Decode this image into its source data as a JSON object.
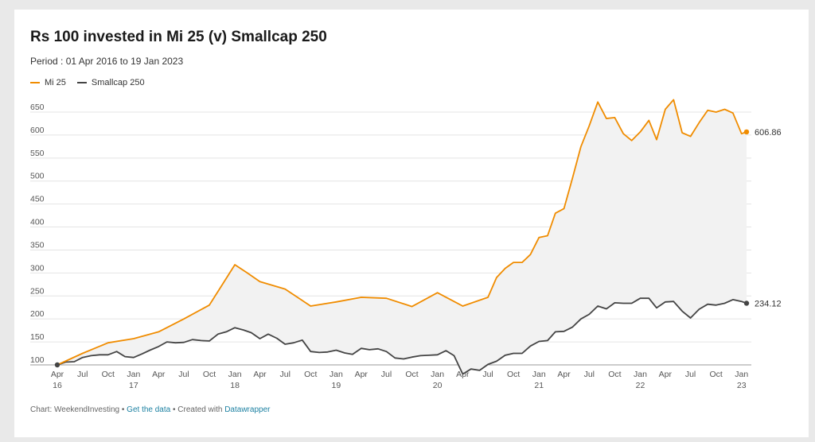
{
  "colors": {
    "mi25": "#f08c00",
    "smallcap": "#444444",
    "fill": "#f2f2f2",
    "grid": "#e4e4e4",
    "link": "#1d81a2"
  },
  "footer": {
    "prefix": "Chart: WeekendInvesting • ",
    "get_data": "Get the data",
    "middle": " • Created with ",
    "tool": "Datawrapper"
  },
  "chart_data": {
    "type": "line",
    "title": "Rs 100 invested in Mi 25 (v) Smallcap 250",
    "subtitle": "Period : 01 Apr 2016 to 19 Jan 2023",
    "xlabel": "",
    "ylabel": "",
    "ylim": [
      100,
      650
    ],
    "xlim": [
      "2016-04-01",
      "2023-01-19"
    ],
    "y_ticks": [
      100,
      150,
      200,
      250,
      300,
      350,
      400,
      450,
      500,
      550,
      600,
      650
    ],
    "x_ticks": [
      {
        "date": "2016-04-01",
        "label": "Apr",
        "year": "16"
      },
      {
        "date": "2016-07-01",
        "label": "Jul",
        "year": ""
      },
      {
        "date": "2016-10-01",
        "label": "Oct",
        "year": ""
      },
      {
        "date": "2017-01-01",
        "label": "Jan",
        "year": "17"
      },
      {
        "date": "2017-04-01",
        "label": "Apr",
        "year": ""
      },
      {
        "date": "2017-07-01",
        "label": "Jul",
        "year": ""
      },
      {
        "date": "2017-10-01",
        "label": "Oct",
        "year": ""
      },
      {
        "date": "2018-01-01",
        "label": "Jan",
        "year": "18"
      },
      {
        "date": "2018-04-01",
        "label": "Apr",
        "year": ""
      },
      {
        "date": "2018-07-01",
        "label": "Jul",
        "year": ""
      },
      {
        "date": "2018-10-01",
        "label": "Oct",
        "year": ""
      },
      {
        "date": "2019-01-01",
        "label": "Jan",
        "year": "19"
      },
      {
        "date": "2019-04-01",
        "label": "Apr",
        "year": ""
      },
      {
        "date": "2019-07-01",
        "label": "Jul",
        "year": ""
      },
      {
        "date": "2019-10-01",
        "label": "Oct",
        "year": ""
      },
      {
        "date": "2020-01-01",
        "label": "Jan",
        "year": "20"
      },
      {
        "date": "2020-04-01",
        "label": "Apr",
        "year": ""
      },
      {
        "date": "2020-07-01",
        "label": "Jul",
        "year": ""
      },
      {
        "date": "2020-10-01",
        "label": "Oct",
        "year": ""
      },
      {
        "date": "2021-01-01",
        "label": "Jan",
        "year": "21"
      },
      {
        "date": "2021-04-01",
        "label": "Apr",
        "year": ""
      },
      {
        "date": "2021-07-01",
        "label": "Jul",
        "year": ""
      },
      {
        "date": "2021-10-01",
        "label": "Oct",
        "year": ""
      },
      {
        "date": "2022-01-01",
        "label": "Jan",
        "year": "22"
      },
      {
        "date": "2022-04-01",
        "label": "Apr",
        "year": ""
      },
      {
        "date": "2022-07-01",
        "label": "Jul",
        "year": ""
      },
      {
        "date": "2022-10-01",
        "label": "Oct",
        "year": ""
      },
      {
        "date": "2023-01-01",
        "label": "Jan",
        "year": "23"
      }
    ],
    "grid": "horizontal",
    "legend": "top-left",
    "area_between_series": true,
    "series": [
      {
        "name": "Mi 25",
        "color": "#f08c00",
        "end_label": "606.86",
        "points": [
          [
            "2016-04-01",
            100
          ],
          [
            "2016-07-01",
            125
          ],
          [
            "2016-10-01",
            148
          ],
          [
            "2017-01-01",
            157
          ],
          [
            "2017-04-01",
            172
          ],
          [
            "2017-07-01",
            200
          ],
          [
            "2017-10-01",
            230
          ],
          [
            "2017-11-15",
            273
          ],
          [
            "2018-01-01",
            318
          ],
          [
            "2018-02-15",
            300
          ],
          [
            "2018-04-01",
            281
          ],
          [
            "2018-07-01",
            265
          ],
          [
            "2018-10-01",
            228
          ],
          [
            "2019-01-01",
            237
          ],
          [
            "2019-04-01",
            247
          ],
          [
            "2019-07-01",
            245
          ],
          [
            "2019-10-01",
            227
          ],
          [
            "2020-01-01",
            257
          ],
          [
            "2020-04-01",
            228
          ],
          [
            "2020-07-01",
            247
          ],
          [
            "2020-08-01",
            290
          ],
          [
            "2020-09-01",
            310
          ],
          [
            "2020-10-01",
            323
          ],
          [
            "2020-11-01",
            323
          ],
          [
            "2020-12-01",
            340
          ],
          [
            "2021-01-01",
            377
          ],
          [
            "2021-02-01",
            381
          ],
          [
            "2021-03-01",
            430
          ],
          [
            "2021-04-01",
            440
          ],
          [
            "2021-05-01",
            505
          ],
          [
            "2021-06-01",
            575
          ],
          [
            "2021-07-01",
            620
          ],
          [
            "2021-08-01",
            672
          ],
          [
            "2021-09-01",
            636
          ],
          [
            "2021-10-01",
            638
          ],
          [
            "2021-11-01",
            603
          ],
          [
            "2021-12-01",
            588
          ],
          [
            "2022-01-01",
            607
          ],
          [
            "2022-02-01",
            632
          ],
          [
            "2022-03-01",
            590
          ],
          [
            "2022-04-01",
            656
          ],
          [
            "2022-05-01",
            677
          ],
          [
            "2022-06-01",
            605
          ],
          [
            "2022-07-01",
            597
          ],
          [
            "2022-08-01",
            627
          ],
          [
            "2022-09-01",
            654
          ],
          [
            "2022-10-01",
            650
          ],
          [
            "2022-11-01",
            656
          ],
          [
            "2022-12-01",
            648
          ],
          [
            "2023-01-01",
            603
          ],
          [
            "2023-01-19",
            606.86
          ]
        ]
      },
      {
        "name": "Smallcap 250",
        "color": "#444444",
        "end_label": "234.12",
        "points": [
          [
            "2016-04-01",
            100
          ],
          [
            "2016-05-01",
            106
          ],
          [
            "2016-06-01",
            107
          ],
          [
            "2016-07-01",
            116
          ],
          [
            "2016-08-01",
            120
          ],
          [
            "2016-09-01",
            122
          ],
          [
            "2016-10-01",
            122
          ],
          [
            "2016-11-01",
            129
          ],
          [
            "2016-12-01",
            118
          ],
          [
            "2017-01-01",
            116
          ],
          [
            "2017-02-01",
            124
          ],
          [
            "2017-03-01",
            132
          ],
          [
            "2017-04-01",
            140
          ],
          [
            "2017-05-01",
            150
          ],
          [
            "2017-06-01",
            148
          ],
          [
            "2017-07-01",
            149
          ],
          [
            "2017-08-01",
            155
          ],
          [
            "2017-09-01",
            153
          ],
          [
            "2017-10-01",
            152
          ],
          [
            "2017-11-01",
            167
          ],
          [
            "2017-12-01",
            172
          ],
          [
            "2018-01-01",
            181
          ],
          [
            "2018-02-01",
            176
          ],
          [
            "2018-03-01",
            170
          ],
          [
            "2018-04-01",
            157
          ],
          [
            "2018-05-01",
            167
          ],
          [
            "2018-06-01",
            158
          ],
          [
            "2018-07-01",
            145
          ],
          [
            "2018-08-01",
            148
          ],
          [
            "2018-09-01",
            154
          ],
          [
            "2018-10-01",
            129
          ],
          [
            "2018-11-01",
            127
          ],
          [
            "2018-12-01",
            128
          ],
          [
            "2019-01-01",
            132
          ],
          [
            "2019-02-01",
            126
          ],
          [
            "2019-03-01",
            123
          ],
          [
            "2019-04-01",
            136
          ],
          [
            "2019-05-01",
            133
          ],
          [
            "2019-06-01",
            135
          ],
          [
            "2019-07-01",
            129
          ],
          [
            "2019-08-01",
            115
          ],
          [
            "2019-09-01",
            113
          ],
          [
            "2019-10-01",
            117
          ],
          [
            "2019-11-01",
            120
          ],
          [
            "2019-12-01",
            121
          ],
          [
            "2020-01-01",
            122
          ],
          [
            "2020-02-01",
            131
          ],
          [
            "2020-03-01",
            120
          ],
          [
            "2020-04-01",
            80
          ],
          [
            "2020-05-01",
            91
          ],
          [
            "2020-06-01",
            88
          ],
          [
            "2020-07-01",
            101
          ],
          [
            "2020-08-01",
            108
          ],
          [
            "2020-09-01",
            121
          ],
          [
            "2020-10-01",
            125
          ],
          [
            "2020-11-01",
            125
          ],
          [
            "2020-12-01",
            141
          ],
          [
            "2021-01-01",
            151
          ],
          [
            "2021-02-01",
            153
          ],
          [
            "2021-03-01",
            172
          ],
          [
            "2021-04-01",
            173
          ],
          [
            "2021-05-01",
            182
          ],
          [
            "2021-06-01",
            200
          ],
          [
            "2021-07-01",
            210
          ],
          [
            "2021-08-01",
            228
          ],
          [
            "2021-09-01",
            222
          ],
          [
            "2021-10-01",
            235
          ],
          [
            "2021-11-01",
            234
          ],
          [
            "2021-12-01",
            234
          ],
          [
            "2022-01-01",
            245
          ],
          [
            "2022-02-01",
            245
          ],
          [
            "2022-03-01",
            224
          ],
          [
            "2022-04-01",
            237
          ],
          [
            "2022-05-01",
            238
          ],
          [
            "2022-06-01",
            217
          ],
          [
            "2022-07-01",
            202
          ],
          [
            "2022-08-01",
            221
          ],
          [
            "2022-09-01",
            232
          ],
          [
            "2022-10-01",
            230
          ],
          [
            "2022-11-01",
            234
          ],
          [
            "2022-12-01",
            242
          ],
          [
            "2023-01-01",
            238
          ],
          [
            "2023-01-19",
            234.12
          ]
        ]
      }
    ]
  }
}
